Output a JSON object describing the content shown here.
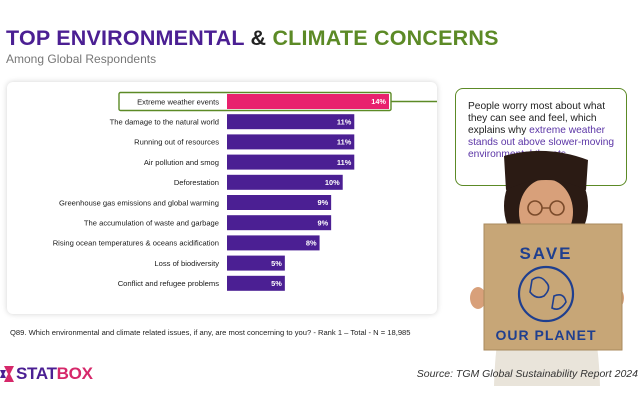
{
  "header": {
    "title_part1": "TOP ENVIRONMENTAL",
    "title_amp": "&",
    "title_part2": "CLIMATE CONCERNS",
    "subtitle": "Among Global Respondents"
  },
  "chart_data": {
    "type": "bar",
    "orientation": "horizontal",
    "categories": [
      "Extreme weather events",
      "The damage to the natural world",
      "Running out of resources",
      "Air pollution and smog",
      "Deforestation",
      "Greenhouse gas emissions and global warming",
      "The accumulation of waste and garbage",
      "Rising ocean temperatures & oceans acidification",
      "Loss of biodiversity",
      "Conflict and refugee problems"
    ],
    "values": [
      14,
      11,
      11,
      11,
      10,
      9,
      9,
      8,
      5,
      5
    ],
    "value_labels": [
      "14%",
      "11%",
      "11%",
      "11%",
      "10%",
      "9%",
      "9%",
      "8%",
      "5%",
      "5%"
    ],
    "highlight_index": 0,
    "title": "",
    "xlabel": "",
    "ylabel": "",
    "xlim": [
      0,
      14
    ],
    "grid": false,
    "legend": "none",
    "colors": {
      "bar": "#4b1f93",
      "highlight": "#e8216e",
      "highlight_border": "#5c8a26"
    }
  },
  "callout": {
    "text_before": "People worry most about what they can see and feel, which explains why ",
    "text_highlight": "extreme weather stands out above slower-moving environmental threats"
  },
  "photo": {
    "sign_line1": "SAVE",
    "sign_line2": "OUR PLANET"
  },
  "footnote": {
    "question": "Q89. Which environmental and climate related issues, if any, are most concerning to you? - Rank 1 – Total - N = 18,985"
  },
  "footer": {
    "logo_part1": "STAT",
    "logo_part2": "BOX",
    "source": "Source: TGM Global Sustainability Report 2024"
  }
}
